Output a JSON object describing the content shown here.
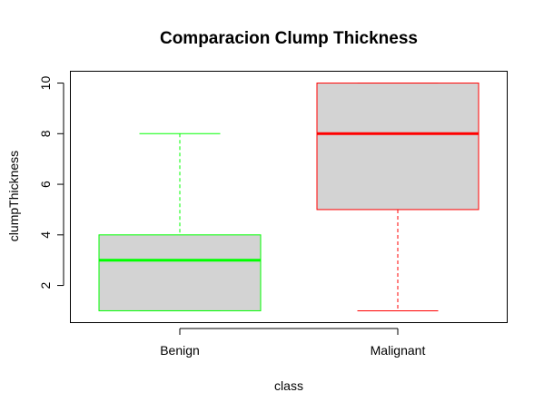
{
  "chart_data": {
    "type": "boxplot",
    "title": "Comparacion Clump Thickness",
    "xlabel": "class",
    "ylabel": "clumpThickness",
    "categories": [
      "Benign",
      "Malignant"
    ],
    "ylim": [
      0.55,
      10.45
    ],
    "yticks": [
      2,
      4,
      6,
      8,
      10
    ],
    "grid": false,
    "legend": "none",
    "box_fill": "#d3d3d3",
    "series": [
      {
        "category": "Benign",
        "color": "#00ff00",
        "whisker_low": 1,
        "q1": 1,
        "median": 3,
        "q3": 4,
        "whisker_high": 8
      },
      {
        "category": "Malignant",
        "color": "#ff0000",
        "whisker_low": 1,
        "q1": 5,
        "median": 8,
        "q3": 10,
        "whisker_high": 10
      }
    ]
  }
}
